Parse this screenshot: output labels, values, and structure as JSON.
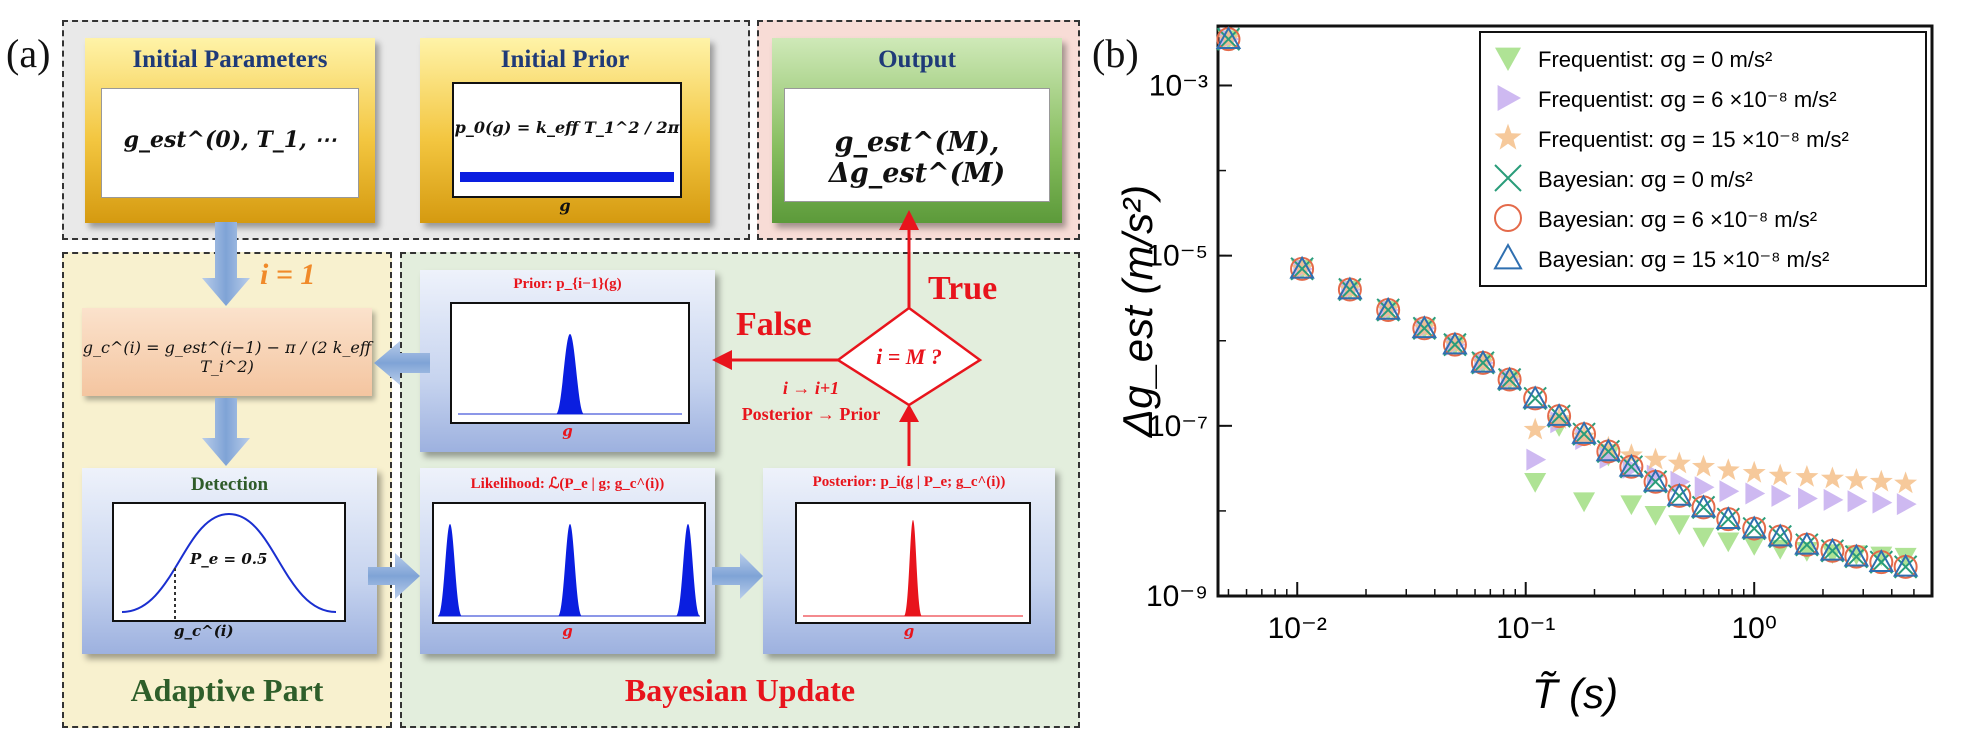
{
  "panel_a": {
    "label": "(a)",
    "initial_parameters": {
      "title": "Initial Parameters",
      "formula": "g_est^(0), T_1, ⋯"
    },
    "initial_prior": {
      "title": "Initial Prior",
      "formula": "p_0(g) = k_eff T_1^2 / 2π",
      "axis": "g"
    },
    "output": {
      "title": "Output",
      "formula": "g_est^(M), Δg_est^(M)"
    },
    "adaptive": {
      "iter_label": "i = 1",
      "update_formula": "g_c^(i) = g_est^(i−1) − π / (2 k_eff T_i^2)",
      "detection_title": "Detection",
      "pe_label": "P_e = 0.5",
      "gc_label": "g_c^(i)",
      "section_title": "Adaptive Part"
    },
    "bayesian": {
      "prior_title": "Prior: p_{i−1}(g)",
      "likelihood_title": "Likelihood: ℒ(P_e | g; g_c^(i))",
      "posterior_title": "Posterior: p_i(g | P_e; g_c^(i))",
      "axis": "g",
      "decision": "i = M ?",
      "true_label": "True",
      "false_label": "False",
      "step_label1": "i → i+1",
      "step_label2": "Posterior → Prior",
      "section_title": "Bayesian Update"
    }
  },
  "panel_b": {
    "label": "(b)",
    "colors": {
      "freq0": "#a6e08a",
      "freq6": "#c9b1f0",
      "freq15": "#f5c08a",
      "bay0": "#2a9d7a",
      "bay6": "#e46a4a",
      "bay15": "#2f6fb0"
    },
    "chart_data": {
      "type": "scatter",
      "xscale": "log",
      "yscale": "log",
      "xlim": [
        0.0045,
        6
      ],
      "ylim": [
        1e-09,
        0.005
      ],
      "xlabel": "T̃ (s)",
      "ylabel": "Δg_est (m/s²)",
      "xticks": [
        "10⁻²",
        "10⁻¹",
        "10⁰"
      ],
      "yticks": [
        "10⁻³",
        "10⁻⁵",
        "10⁻⁷",
        "10⁻⁹"
      ],
      "legend_position": "top-right",
      "series": [
        {
          "name": "Frequentist: σg = 0 m/s²",
          "marker": "triangle-down",
          "x": [
            0.005,
            0.0105,
            0.017,
            0.025,
            0.036,
            0.049,
            0.065,
            0.085,
            0.11,
            0.14,
            0.18,
            0.23,
            0.29,
            0.37,
            0.47,
            0.6,
            0.77,
            1.0,
            1.3,
            1.7,
            2.2,
            2.8,
            3.6,
            4.6
          ],
          "y": [
            0.0035,
            7e-06,
            4e-06,
            2.3e-06,
            1.4e-06,
            9e-07,
            5.5e-07,
            3.5e-07,
            2.2e-08,
            1e-07,
            1.3e-08,
            4.5e-08,
            1.2e-08,
            9e-09,
            7e-09,
            5e-09,
            4.4e-09,
            4e-09,
            3.6e-09,
            3.4e-09,
            3.2e-09,
            3.1e-09,
            3e-09,
            2.9e-09
          ]
        },
        {
          "name": "Frequentist: σg = 6 ×10⁻⁸ m/s²",
          "marker": "triangle-right",
          "x": [
            0.005,
            0.0105,
            0.017,
            0.025,
            0.036,
            0.049,
            0.065,
            0.085,
            0.11,
            0.14,
            0.18,
            0.23,
            0.29,
            0.37,
            0.47,
            0.6,
            0.77,
            1.0,
            1.3,
            1.7,
            2.2,
            2.8,
            3.6,
            4.6
          ],
          "y": [
            0.0035,
            7e-06,
            4e-06,
            2.3e-06,
            1.4e-06,
            9e-07,
            5.5e-07,
            3.5e-07,
            4e-08,
            1.1e-07,
            7e-08,
            4.2e-08,
            3.2e-08,
            2.6e-08,
            2.2e-08,
            1.9e-08,
            1.7e-08,
            1.6e-08,
            1.5e-08,
            1.4e-08,
            1.35e-08,
            1.3e-08,
            1.25e-08,
            1.2e-08
          ]
        },
        {
          "name": "Frequentist: σg = 15 ×10⁻⁸ m/s²",
          "marker": "star",
          "x": [
            0.005,
            0.0105,
            0.017,
            0.025,
            0.036,
            0.049,
            0.065,
            0.085,
            0.11,
            0.14,
            0.18,
            0.23,
            0.29,
            0.37,
            0.47,
            0.6,
            0.77,
            1.0,
            1.3,
            1.7,
            2.2,
            2.8,
            3.6,
            4.6
          ],
          "y": [
            0.0035,
            7e-06,
            4e-06,
            2.3e-06,
            1.4e-06,
            9e-07,
            5.5e-07,
            3.5e-07,
            9e-08,
            1.2e-07,
            7.5e-08,
            5.5e-08,
            4.5e-08,
            4e-08,
            3.6e-08,
            3.3e-08,
            3e-08,
            2.8e-08,
            2.6e-08,
            2.5e-08,
            2.4e-08,
            2.3e-08,
            2.2e-08,
            2.1e-08
          ]
        },
        {
          "name": "Bayesian: σg = 0 m/s²",
          "marker": "x",
          "x": [
            0.005,
            0.0105,
            0.017,
            0.025,
            0.036,
            0.049,
            0.065,
            0.085,
            0.11,
            0.14,
            0.18,
            0.23,
            0.29,
            0.37,
            0.47,
            0.6,
            0.77,
            1.0,
            1.3,
            1.7,
            2.2,
            2.8,
            3.6,
            4.6
          ],
          "y": [
            0.0035,
            7e-06,
            4e-06,
            2.3e-06,
            1.4e-06,
            9e-07,
            5.5e-07,
            3.5e-07,
            2.1e-07,
            1.3e-07,
            8e-08,
            5e-08,
            3.3e-08,
            2.2e-08,
            1.5e-08,
            1.1e-08,
            8e-09,
            6.2e-09,
            5e-09,
            4e-09,
            3.4e-09,
            2.9e-09,
            2.5e-09,
            2.2e-09
          ]
        },
        {
          "name": "Bayesian: σg = 6 ×10⁻⁸ m/s²",
          "marker": "circle",
          "x": [
            0.005,
            0.0105,
            0.017,
            0.025,
            0.036,
            0.049,
            0.065,
            0.085,
            0.11,
            0.14,
            0.18,
            0.23,
            0.29,
            0.37,
            0.47,
            0.6,
            0.77,
            1.0,
            1.3,
            1.7,
            2.2,
            2.8,
            3.6,
            4.6
          ],
          "y": [
            0.0035,
            7e-06,
            4e-06,
            2.3e-06,
            1.4e-06,
            9e-07,
            5.5e-07,
            3.5e-07,
            2.1e-07,
            1.3e-07,
            8e-08,
            5e-08,
            3.3e-08,
            2.2e-08,
            1.5e-08,
            1.1e-08,
            8e-09,
            6.2e-09,
            5e-09,
            4e-09,
            3.4e-09,
            2.9e-09,
            2.5e-09,
            2.2e-09
          ]
        },
        {
          "name": "Bayesian: σg = 15 ×10⁻⁸ m/s²",
          "marker": "triangle-up",
          "x": [
            0.005,
            0.0105,
            0.017,
            0.025,
            0.036,
            0.049,
            0.065,
            0.085,
            0.11,
            0.14,
            0.18,
            0.23,
            0.29,
            0.37,
            0.47,
            0.6,
            0.77,
            1.0,
            1.3,
            1.7,
            2.2,
            2.8,
            3.6,
            4.6
          ],
          "y": [
            0.0035,
            7e-06,
            4e-06,
            2.3e-06,
            1.4e-06,
            9e-07,
            5.5e-07,
            3.5e-07,
            2.1e-07,
            1.3e-07,
            8e-08,
            5e-08,
            3.3e-08,
            2.2e-08,
            1.5e-08,
            1.1e-08,
            8e-09,
            6.2e-09,
            5e-09,
            4e-09,
            3.4e-09,
            2.9e-09,
            2.5e-09,
            2.2e-09
          ]
        }
      ]
    }
  }
}
